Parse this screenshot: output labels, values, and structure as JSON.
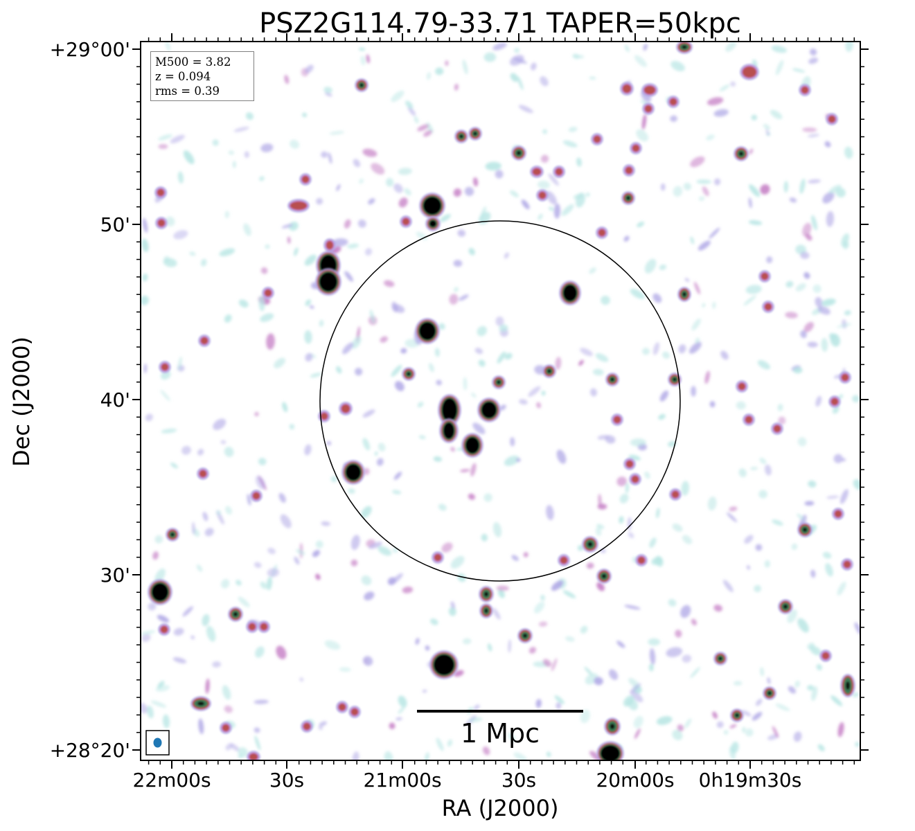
{
  "figure": {
    "title": "PSZ2G114.79-33.71 TAPER=50kpc",
    "x_axis_label": "RA (J2000)",
    "y_axis_label": "Dec (J2000)",
    "x_ticks": [
      "22m00s",
      "30s",
      "21m00s",
      "30s",
      "20m00s",
      "0h19m30s"
    ],
    "y_ticks": [
      "+29°00'",
      "50'",
      "40'",
      "30'",
      "+28°20'"
    ],
    "scale_bar_label": "1 Mpc",
    "info": {
      "mass": "M500 = 3.82",
      "redshift": "z = 0.094",
      "rms": "rms = 0.39"
    },
    "colors": {
      "compact_source": "#000000",
      "ring_green": "#3a7a55",
      "mid_red": "#b8504f",
      "magenta": "#c47cc4",
      "lavender": "#b0a8e6",
      "cyan_noise": "#b8e6e4",
      "beam": "#1f77b4",
      "circle": "#000000"
    }
  }
}
